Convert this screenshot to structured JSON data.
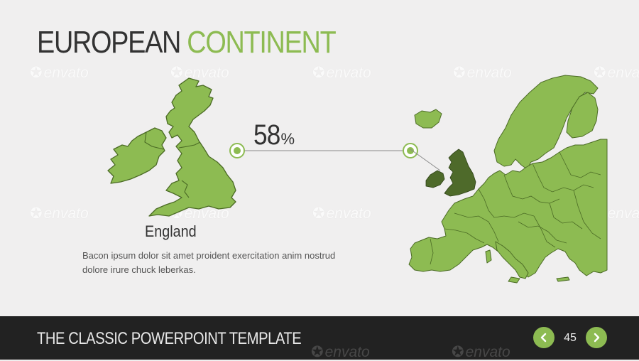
{
  "slide": {
    "title_part1": "EUROPEAN",
    "title_part2": "CONTINENT",
    "stat_value": "58",
    "stat_unit": "%",
    "country_name": "England",
    "description": "Bacon ipsum dolor sit amet proident exercitation anim nostrud dolore irure chuck leberkas."
  },
  "footer": {
    "title": "THE CLASSIC POWERPOINT TEMPLATE",
    "page_number": "45",
    "prev_icon": "chevron-left-icon",
    "next_icon": "chevron-right-icon"
  },
  "watermark": {
    "text": "envato"
  },
  "colors": {
    "accent": "#8dbb52",
    "highlight": "#4e6a2a",
    "title_dark": "#333333",
    "footer_bg": "#222222",
    "background": "#f0efef"
  }
}
